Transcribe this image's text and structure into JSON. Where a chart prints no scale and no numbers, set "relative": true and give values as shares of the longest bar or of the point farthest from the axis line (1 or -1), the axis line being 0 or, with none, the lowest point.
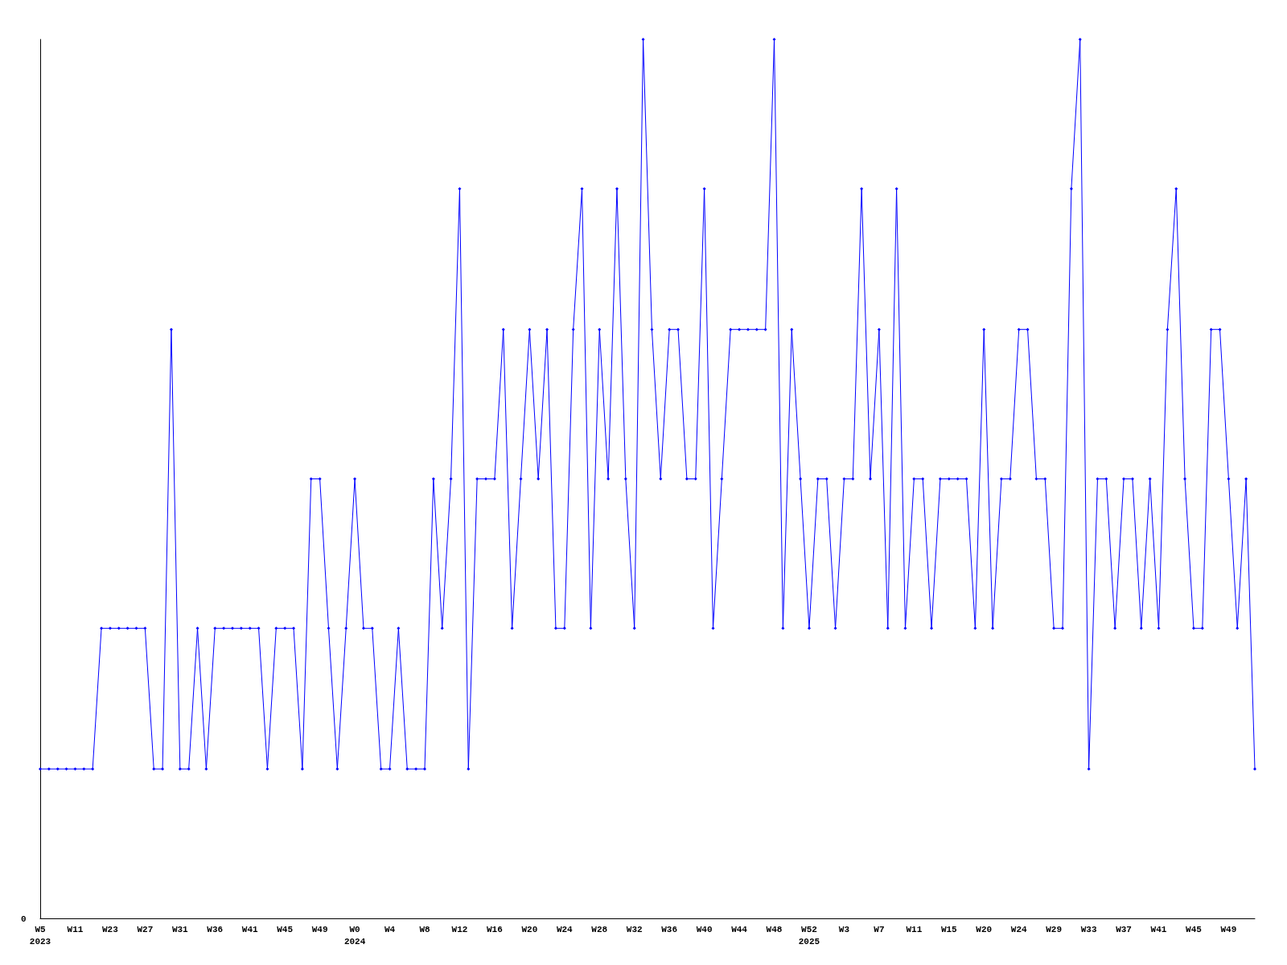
{
  "chart_data": {
    "type": "line",
    "relative": true,
    "marker": "diamond",
    "line_style": "solid",
    "grid": false,
    "annotations": [
      "0"
    ],
    "categories": [
      "W5\n2023",
      null,
      null,
      null,
      "W11",
      null,
      null,
      null,
      "W23",
      null,
      null,
      null,
      "W27",
      null,
      null,
      null,
      "W31",
      null,
      null,
      null,
      "W36",
      null,
      null,
      null,
      "W41",
      null,
      null,
      null,
      "W45",
      null,
      null,
      null,
      "W49",
      null,
      null,
      null,
      "W0\n2024",
      null,
      null,
      null,
      "W4",
      null,
      null,
      null,
      "W8",
      null,
      null,
      null,
      "W12",
      null,
      null,
      null,
      "W16",
      null,
      null,
      null,
      "W20",
      null,
      null,
      null,
      "W24",
      null,
      null,
      null,
      "W28",
      null,
      null,
      null,
      "W32",
      null,
      null,
      null,
      "W36",
      null,
      null,
      null,
      "W40",
      null,
      null,
      null,
      "W44",
      null,
      null,
      null,
      "W48",
      null,
      null,
      null,
      "W52\n2025",
      null,
      null,
      null,
      "W3",
      null,
      null,
      null,
      "W7",
      null,
      null,
      null,
      "W11",
      null,
      null,
      null,
      "W15",
      null,
      null,
      null,
      "W20",
      null,
      null,
      null,
      "W24",
      null,
      null,
      null,
      "W29",
      null,
      null,
      null,
      "W33",
      null,
      null,
      null,
      "W37",
      null,
      null,
      null,
      "W41",
      null,
      null,
      null,
      "W45",
      null,
      null,
      null,
      "W49",
      null,
      null,
      null
    ],
    "series": [
      {
        "color": "#0000ff",
        "values": [
          0.17,
          0.17,
          0.17,
          0.17,
          0.17,
          0.17,
          0.17,
          0.33,
          0.33,
          0.33,
          0.33,
          0.33,
          0.33,
          0.17,
          0.17,
          0.67,
          0.17,
          0.17,
          0.33,
          0.17,
          0.33,
          0.33,
          0.33,
          0.33,
          0.33,
          0.33,
          0.17,
          0.33,
          0.33,
          0.33,
          0.17,
          0.5,
          0.5,
          0.33,
          0.17,
          0.33,
          0.5,
          0.33,
          0.33,
          0.17,
          0.17,
          0.33,
          0.17,
          0.17,
          0.17,
          0.5,
          0.33,
          0.5,
          0.83,
          0.17,
          0.5,
          0.5,
          0.5,
          0.67,
          0.33,
          0.5,
          0.67,
          0.5,
          0.67,
          0.33,
          0.33,
          0.67,
          0.83,
          0.33,
          0.67,
          0.5,
          0.83,
          0.5,
          0.33,
          1,
          0.67,
          0.5,
          0.67,
          0.67,
          0.5,
          0.5,
          0.83,
          0.33,
          0.5,
          0.67,
          0.67,
          0.67,
          0.67,
          0.67,
          1,
          0.33,
          0.67,
          0.5,
          0.33,
          0.5,
          0.5,
          0.33,
          0.5,
          0.5,
          0.83,
          0.5,
          0.67,
          0.33,
          0.83,
          0.33,
          0.5,
          0.5,
          0.33,
          0.5,
          0.5,
          0.5,
          0.5,
          0.33,
          0.67,
          0.33,
          0.5,
          0.5,
          0.67,
          0.67,
          0.5,
          0.5,
          0.33,
          0.33,
          0.83,
          1,
          0.17,
          0.5,
          0.5,
          0.33,
          0.5,
          0.5,
          0.33,
          0.5,
          0.33,
          0.67,
          0.83,
          0.5,
          0.33,
          0.33,
          0.67,
          0.67,
          0.5,
          0.33,
          0.5,
          0.17
        ]
      }
    ]
  }
}
